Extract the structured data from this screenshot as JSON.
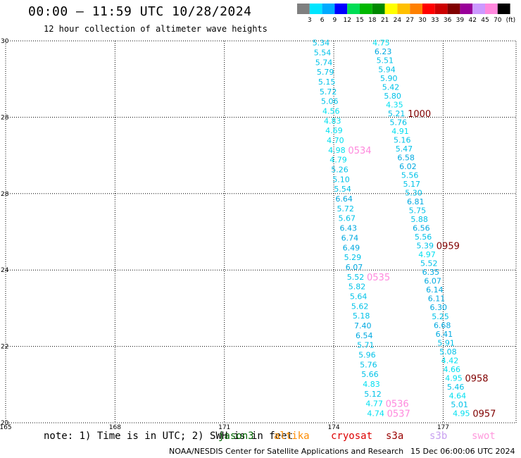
{
  "header": {
    "title": "00:00 – 11:59 UTC 10/28/2024",
    "subtitle": "12 hour collection of altimeter wave heights"
  },
  "colorbar": {
    "ticks": [
      "3",
      "6",
      "9",
      "12",
      "15",
      "18",
      "21",
      "24",
      "27",
      "30",
      "33",
      "36",
      "39",
      "42",
      "45",
      "70"
    ],
    "unit": "(ft)",
    "colors": [
      "#7f7f7f",
      "#00e5ff",
      "#00aaff",
      "#0000ff",
      "#00dd55",
      "#00b800",
      "#008800",
      "#ffff00",
      "#ffc000",
      "#ff8000",
      "#ff0000",
      "#cc0000",
      "#800000",
      "#990099",
      "#cc99ff",
      "#ff88dd",
      "#000000"
    ]
  },
  "footer": {
    "note": "note: 1) Time is in UTC; 2) SWH is in feet",
    "satellites": [
      {
        "name": "jason3",
        "color": "#006600"
      },
      {
        "name": "altika",
        "color": "#ff8c00"
      },
      {
        "name": "cryosat",
        "color": "#dd0000"
      },
      {
        "name": "s3a",
        "color": "#990000"
      },
      {
        "name": "s3b",
        "color": "#c8a0f0"
      },
      {
        "name": "swot",
        "color": "#ff99dd"
      }
    ],
    "credit": "NOAA/NESDIS Center for Satellite Applications and Research",
    "generated": "15 Dec 06:00:06 UTC 2024"
  },
  "chart_data": {
    "type": "scatter",
    "xlim": [
      165,
      179
    ],
    "ylim": [
      20,
      30
    ],
    "x_ticks": [
      "165",
      "168",
      "171",
      "174",
      "177"
    ],
    "y_ticks": [
      "30",
      "28",
      "28",
      "24",
      "22",
      "20"
    ],
    "grid": true,
    "tracks": [
      {
        "name": "track-a",
        "x_start": 173.65,
        "y_start": 29.95,
        "x_end": 175.15,
        "y_end": 20.25,
        "values": [
          "5.34",
          "5.54",
          "5.74",
          "5.79",
          "5.15",
          "5.72",
          "5.06",
          "4.56",
          "4.83",
          "4.69",
          "4.70",
          "4.98",
          "4.79",
          "5.26",
          "5.10",
          "5.54",
          "6.64",
          "5.72",
          "5.67",
          "6.43",
          "6.74",
          "6.49",
          "5.29",
          "6.07",
          "5.52",
          "5.82",
          "5.64",
          "5.62",
          "5.18",
          "7.40",
          "6.54",
          "5.71",
          "5.96",
          "5.76",
          "5.66",
          "4.83",
          "5.12",
          "4.77",
          "4.74"
        ],
        "times": [
          {
            "label": "0534",
            "value_index": 11
          },
          {
            "label": "0535",
            "value_index": 24
          },
          {
            "label": "0536",
            "value_index": 37
          },
          {
            "label": "0537",
            "value_index": 38
          }
        ],
        "time_color": "#ff88dd"
      },
      {
        "name": "track-b",
        "x_start": 175.3,
        "y_start": 29.95,
        "x_end": 177.5,
        "y_end": 20.25,
        "values": [
          "4.75",
          "6.23",
          "5.51",
          "5.94",
          "5.90",
          "5.42",
          "5.80",
          "4.35",
          "5.21",
          "5.76",
          "4.91",
          "5.16",
          "5.47",
          "6.58",
          "6.02",
          "5.56",
          "5.17",
          "5.30",
          "6.81",
          "5.75",
          "5.88",
          "6.56",
          "5.56",
          "5.39",
          "4.97",
          "5.52",
          "6.35",
          "6.07",
          "6.14",
          "6.11",
          "6.30",
          "5.25",
          "6.68",
          "6.41",
          "5.91",
          "5.08",
          "4.42",
          "4.66",
          "4.95",
          "5.46",
          "4.64",
          "5.01",
          "4.95"
        ],
        "times": [
          {
            "label": "1000",
            "value_index": 8
          },
          {
            "label": "0959",
            "value_index": 23
          },
          {
            "label": "0958",
            "value_index": 38
          },
          {
            "label": "0957",
            "value_index": 42
          }
        ],
        "time_color": "#800000"
      }
    ]
  }
}
